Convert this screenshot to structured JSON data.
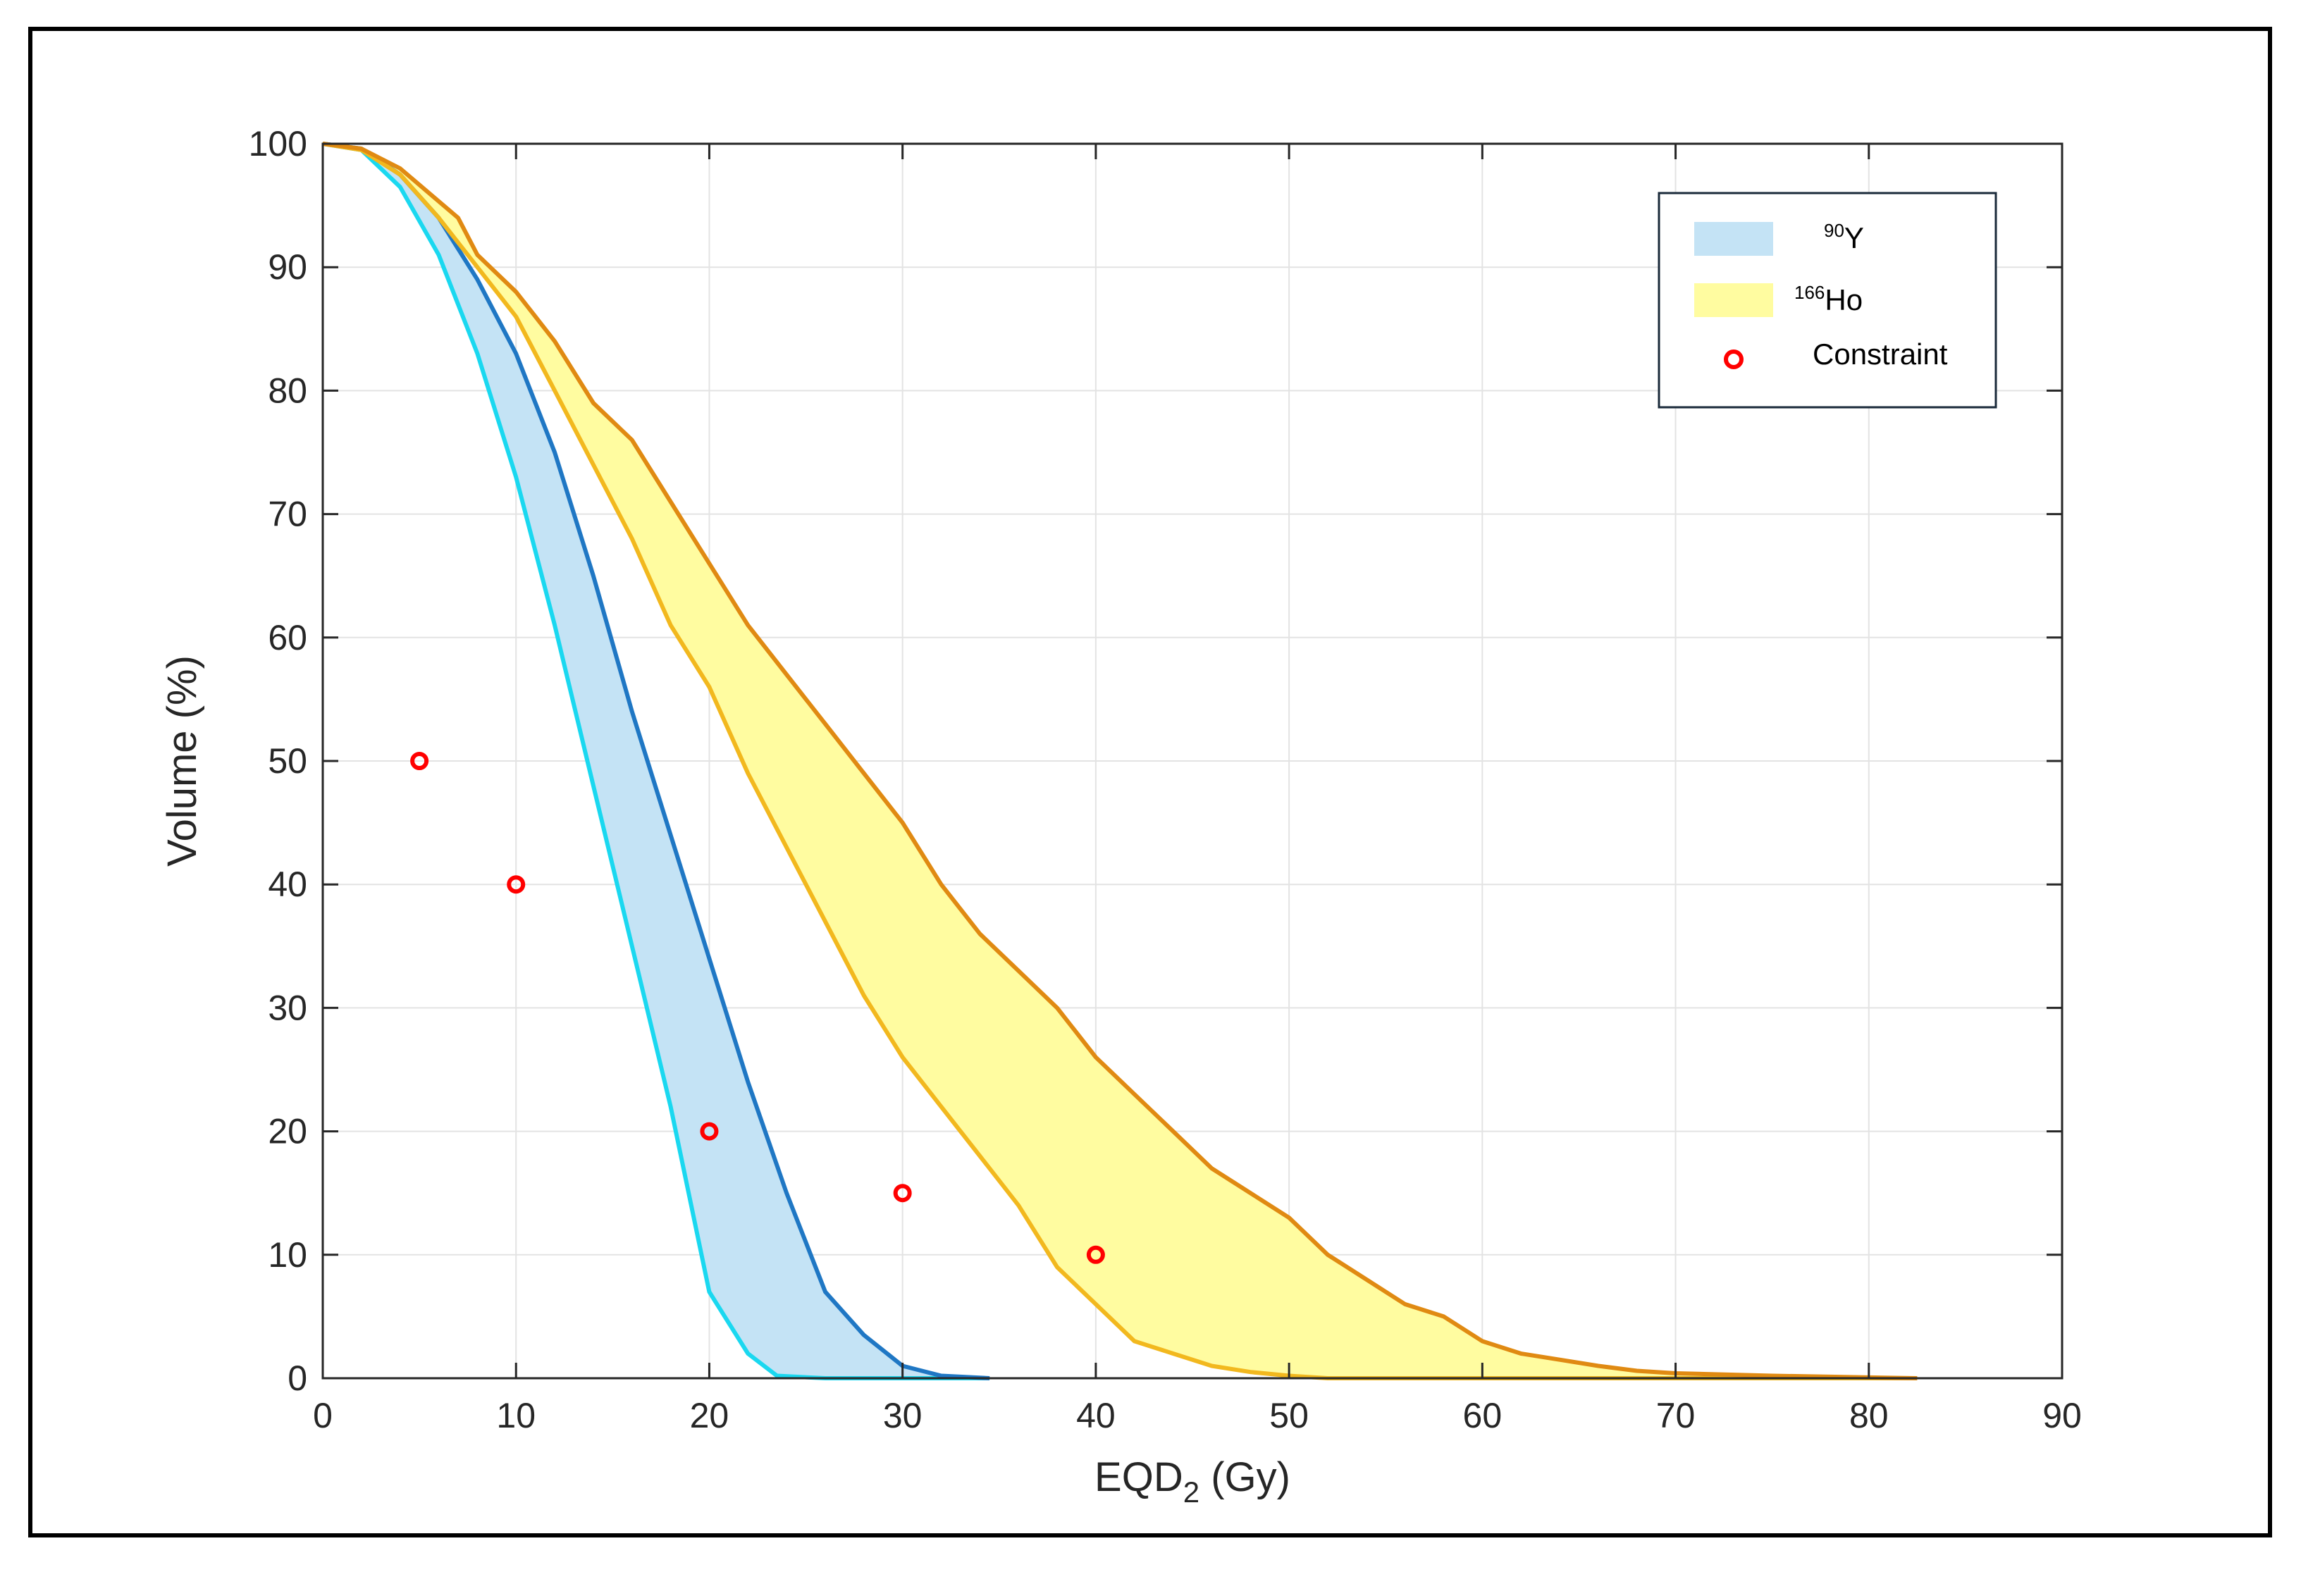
{
  "chart_data": {
    "type": "area",
    "xlabel": "EQD",
    "xlabel_sub": "2",
    "xlabel_unit": "(Gy)",
    "ylabel": "Volume (%)",
    "xlim": [
      0,
      90
    ],
    "ylim": [
      0,
      100
    ],
    "xticks": [
      0,
      10,
      20,
      30,
      40,
      50,
      60,
      70,
      80,
      90
    ],
    "yticks": [
      0,
      10,
      20,
      30,
      40,
      50,
      60,
      70,
      80,
      90,
      100
    ],
    "grid": true,
    "legend_position": "top-right",
    "legend": [
      {
        "key": "y90",
        "sup": "90",
        "text": "Y",
        "color": "#c4e3f5"
      },
      {
        "key": "ho166",
        "sup": "166",
        "text": "Ho",
        "color": "#fffca0"
      },
      {
        "key": "constraint",
        "text": "Constraint",
        "color": "#ff0000"
      }
    ],
    "series": [
      {
        "name": "90Y",
        "fill": "#c4e3f5",
        "upper_color": "#1f77c4",
        "lower_color": "#1ad8f0",
        "upper": [
          [
            0,
            100
          ],
          [
            2,
            99.6
          ],
          [
            4,
            97.5
          ],
          [
            6,
            94
          ],
          [
            8,
            89
          ],
          [
            10,
            83
          ],
          [
            12,
            75
          ],
          [
            14,
            65
          ],
          [
            16,
            54
          ],
          [
            18,
            44
          ],
          [
            20,
            34
          ],
          [
            22,
            24
          ],
          [
            24,
            15
          ],
          [
            26,
            7
          ],
          [
            28,
            3.5
          ],
          [
            30,
            1
          ],
          [
            32,
            0.2
          ],
          [
            34.5,
            0
          ]
        ],
        "lower": [
          [
            0,
            100
          ],
          [
            2,
            99.5
          ],
          [
            4,
            96.5
          ],
          [
            6,
            91
          ],
          [
            8,
            83
          ],
          [
            10,
            73
          ],
          [
            12,
            61
          ],
          [
            14,
            48
          ],
          [
            16,
            35
          ],
          [
            18,
            22
          ],
          [
            20,
            7
          ],
          [
            22,
            2
          ],
          [
            23.5,
            0.2
          ],
          [
            26,
            0
          ],
          [
            34.5,
            0
          ]
        ]
      },
      {
        "name": "166Ho",
        "fill": "#fffca0",
        "upper_color": "#e08a12",
        "lower_color": "#f2b81e",
        "upper": [
          [
            0,
            100
          ],
          [
            2,
            99.6
          ],
          [
            4,
            98
          ],
          [
            7,
            94
          ],
          [
            8,
            91
          ],
          [
            10,
            88
          ],
          [
            12,
            84
          ],
          [
            14,
            79
          ],
          [
            16,
            76
          ],
          [
            18,
            71
          ],
          [
            20,
            66
          ],
          [
            22,
            61
          ],
          [
            24,
            57
          ],
          [
            26,
            53
          ],
          [
            28,
            49
          ],
          [
            30,
            45
          ],
          [
            32,
            40
          ],
          [
            34,
            36
          ],
          [
            36,
            33
          ],
          [
            38,
            30
          ],
          [
            40,
            26
          ],
          [
            42,
            23
          ],
          [
            44,
            20
          ],
          [
            46,
            17
          ],
          [
            48,
            15
          ],
          [
            50,
            13
          ],
          [
            52,
            10
          ],
          [
            54,
            8
          ],
          [
            56,
            6
          ],
          [
            58,
            5
          ],
          [
            60,
            3
          ],
          [
            62,
            2
          ],
          [
            64,
            1.5
          ],
          [
            66,
            1
          ],
          [
            68,
            0.6
          ],
          [
            70,
            0.4
          ],
          [
            75,
            0.2
          ],
          [
            82.5,
            0
          ]
        ],
        "lower": [
          [
            0,
            100
          ],
          [
            2,
            99.5
          ],
          [
            4,
            97.5
          ],
          [
            6,
            94
          ],
          [
            8,
            90
          ],
          [
            10,
            86
          ],
          [
            12,
            80
          ],
          [
            14,
            74
          ],
          [
            16,
            68
          ],
          [
            18,
            61
          ],
          [
            20,
            56
          ],
          [
            22,
            49
          ],
          [
            24,
            43
          ],
          [
            26,
            37
          ],
          [
            28,
            31
          ],
          [
            30,
            26
          ],
          [
            32,
            22
          ],
          [
            34,
            18
          ],
          [
            36,
            14
          ],
          [
            38,
            9
          ],
          [
            40,
            6
          ],
          [
            42,
            3
          ],
          [
            44,
            2
          ],
          [
            46,
            1
          ],
          [
            48,
            0.5
          ],
          [
            50,
            0.2
          ],
          [
            52,
            0
          ],
          [
            82.5,
            0
          ]
        ]
      }
    ],
    "constraints": [
      {
        "x": 5,
        "y": 50
      },
      {
        "x": 10,
        "y": 40
      },
      {
        "x": 20,
        "y": 20
      },
      {
        "x": 30,
        "y": 15
      },
      {
        "x": 40,
        "y": 10
      }
    ]
  }
}
